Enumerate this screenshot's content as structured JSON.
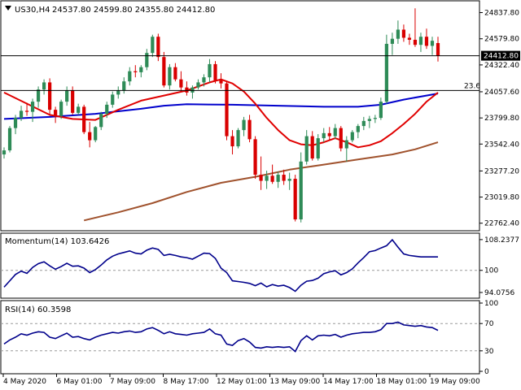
{
  "chart_data": {
    "type": "candlestick",
    "colors": {
      "bull": "#2e8b57",
      "bear": "#d90000",
      "ma_fast": "#e00000",
      "ma_mid": "#0000cc",
      "ma_slow": "#a0522d",
      "indicator_line": "#00008b",
      "price_label_bg": "#000000",
      "price_label_fg": "#ffffff",
      "grid": "#9a9a9a",
      "frame": "#000000"
    },
    "title": {
      "symbol": "US30,H4",
      "ohlc": "24537.80 24599.80 24355.80 24412.80"
    },
    "price_axis": {
      "ticks": [
        "24837.80",
        "24579.80",
        "24322.40",
        "24057.60",
        "23799.80",
        "23542.40",
        "23277.20",
        "23019.80",
        "22762.40"
      ],
      "ylim": [
        22720,
        24930
      ]
    },
    "current_price": {
      "value": 24412.8,
      "label": "24412.80"
    },
    "fib_level": {
      "value": 24070,
      "label": "23.6"
    },
    "x_axis_labels": [
      "4 May 2020",
      "6 May 01:00",
      "7 May 09:00",
      "8 May 17:00",
      "12 May 01:00",
      "13 May 09:00",
      "14 May 17:00",
      "18 May 01:00",
      "19 May 09:00"
    ],
    "candles": [
      {
        "o": 23440,
        "h": 23510,
        "l": 23400,
        "c": 23480
      },
      {
        "o": 23480,
        "h": 23720,
        "l": 23460,
        "c": 23700
      },
      {
        "o": 23700,
        "h": 23830,
        "l": 23640,
        "c": 23800
      },
      {
        "o": 23800,
        "h": 23920,
        "l": 23770,
        "c": 23870
      },
      {
        "o": 23870,
        "h": 23950,
        "l": 23820,
        "c": 23860
      },
      {
        "o": 23860,
        "h": 23990,
        "l": 23760,
        "c": 23960
      },
      {
        "o": 23960,
        "h": 24110,
        "l": 23900,
        "c": 24080
      },
      {
        "o": 24080,
        "h": 24180,
        "l": 24030,
        "c": 24150
      },
      {
        "o": 24150,
        "h": 24190,
        "l": 23820,
        "c": 23880
      },
      {
        "o": 23880,
        "h": 23910,
        "l": 23750,
        "c": 23820
      },
      {
        "o": 23820,
        "h": 23980,
        "l": 23790,
        "c": 23960
      },
      {
        "o": 23960,
        "h": 24110,
        "l": 23920,
        "c": 24070
      },
      {
        "o": 24070,
        "h": 24110,
        "l": 23830,
        "c": 23850
      },
      {
        "o": 23850,
        "h": 23940,
        "l": 23830,
        "c": 23910
      },
      {
        "o": 23910,
        "h": 23930,
        "l": 23640,
        "c": 23660
      },
      {
        "o": 23660,
        "h": 23760,
        "l": 23510,
        "c": 23580
      },
      {
        "o": 23580,
        "h": 23720,
        "l": 23560,
        "c": 23710
      },
      {
        "o": 23710,
        "h": 23860,
        "l": 23680,
        "c": 23840
      },
      {
        "o": 23840,
        "h": 23960,
        "l": 23800,
        "c": 23930
      },
      {
        "o": 23930,
        "h": 24060,
        "l": 23900,
        "c": 24030
      },
      {
        "o": 24030,
        "h": 24110,
        "l": 23990,
        "c": 24070
      },
      {
        "o": 24070,
        "h": 24200,
        "l": 24040,
        "c": 24160
      },
      {
        "o": 24160,
        "h": 24300,
        "l": 24120,
        "c": 24260
      },
      {
        "o": 24260,
        "h": 24320,
        "l": 24200,
        "c": 24250
      },
      {
        "o": 24250,
        "h": 24320,
        "l": 24200,
        "c": 24300
      },
      {
        "o": 24300,
        "h": 24480,
        "l": 24270,
        "c": 24440
      },
      {
        "o": 24440,
        "h": 24620,
        "l": 24400,
        "c": 24600
      },
      {
        "o": 24600,
        "h": 24630,
        "l": 24360,
        "c": 24400
      },
      {
        "o": 24400,
        "h": 24450,
        "l": 24100,
        "c": 24120
      },
      {
        "o": 24120,
        "h": 24330,
        "l": 24080,
        "c": 24300
      },
      {
        "o": 24300,
        "h": 24340,
        "l": 24160,
        "c": 24180
      },
      {
        "o": 24180,
        "h": 24260,
        "l": 24060,
        "c": 24100
      },
      {
        "o": 24100,
        "h": 24160,
        "l": 24020,
        "c": 24050
      },
      {
        "o": 24050,
        "h": 24120,
        "l": 23990,
        "c": 24100
      },
      {
        "o": 24100,
        "h": 24180,
        "l": 24080,
        "c": 24150
      },
      {
        "o": 24150,
        "h": 24230,
        "l": 24110,
        "c": 24200
      },
      {
        "o": 24200,
        "h": 24380,
        "l": 24150,
        "c": 24330
      },
      {
        "o": 24330,
        "h": 24360,
        "l": 24140,
        "c": 24170
      },
      {
        "o": 24170,
        "h": 24240,
        "l": 24090,
        "c": 24140
      },
      {
        "o": 24140,
        "h": 24160,
        "l": 23580,
        "c": 23620
      },
      {
        "o": 23620,
        "h": 23680,
        "l": 23440,
        "c": 23520
      },
      {
        "o": 23520,
        "h": 23700,
        "l": 23500,
        "c": 23680
      },
      {
        "o": 23680,
        "h": 23810,
        "l": 23620,
        "c": 23780
      },
      {
        "o": 23780,
        "h": 23830,
        "l": 23560,
        "c": 23590
      },
      {
        "o": 23590,
        "h": 23620,
        "l": 23200,
        "c": 23240
      },
      {
        "o": 23240,
        "h": 23420,
        "l": 23090,
        "c": 23180
      },
      {
        "o": 23180,
        "h": 23280,
        "l": 23100,
        "c": 23230
      },
      {
        "o": 23230,
        "h": 23340,
        "l": 23150,
        "c": 23170
      },
      {
        "o": 23170,
        "h": 23270,
        "l": 23110,
        "c": 23240
      },
      {
        "o": 23240,
        "h": 23290,
        "l": 23140,
        "c": 23180
      },
      {
        "o": 23180,
        "h": 23260,
        "l": 23090,
        "c": 23200
      },
      {
        "o": 23200,
        "h": 23240,
        "l": 22780,
        "c": 22800
      },
      {
        "o": 22800,
        "h": 23460,
        "l": 22770,
        "c": 23370
      },
      {
        "o": 23370,
        "h": 23680,
        "l": 23340,
        "c": 23620
      },
      {
        "o": 23620,
        "h": 23670,
        "l": 23380,
        "c": 23400
      },
      {
        "o": 23400,
        "h": 23640,
        "l": 23380,
        "c": 23600
      },
      {
        "o": 23600,
        "h": 23700,
        "l": 23560,
        "c": 23650
      },
      {
        "o": 23650,
        "h": 23710,
        "l": 23580,
        "c": 23620
      },
      {
        "o": 23620,
        "h": 23740,
        "l": 23590,
        "c": 23700
      },
      {
        "o": 23700,
        "h": 23720,
        "l": 23470,
        "c": 23500
      },
      {
        "o": 23500,
        "h": 23620,
        "l": 23370,
        "c": 23580
      },
      {
        "o": 23580,
        "h": 23680,
        "l": 23560,
        "c": 23660
      },
      {
        "o": 23660,
        "h": 23740,
        "l": 23600,
        "c": 23720
      },
      {
        "o": 23720,
        "h": 23810,
        "l": 23680,
        "c": 23770
      },
      {
        "o": 23770,
        "h": 23820,
        "l": 23700,
        "c": 23790
      },
      {
        "o": 23790,
        "h": 23830,
        "l": 23750,
        "c": 23800
      },
      {
        "o": 23800,
        "h": 24000,
        "l": 23780,
        "c": 23960
      },
      {
        "o": 23960,
        "h": 24620,
        "l": 23940,
        "c": 24530
      },
      {
        "o": 24530,
        "h": 24640,
        "l": 24420,
        "c": 24580
      },
      {
        "o": 24580,
        "h": 24760,
        "l": 24530,
        "c": 24670
      },
      {
        "o": 24670,
        "h": 24720,
        "l": 24550,
        "c": 24590
      },
      {
        "o": 24590,
        "h": 24630,
        "l": 24520,
        "c": 24570
      },
      {
        "o": 24570,
        "h": 24880,
        "l": 24500,
        "c": 24520
      },
      {
        "o": 24520,
        "h": 24640,
        "l": 24450,
        "c": 24600
      },
      {
        "o": 24600,
        "h": 24680,
        "l": 24480,
        "c": 24510
      },
      {
        "o": 24510,
        "h": 24600,
        "l": 24420,
        "c": 24560
      },
      {
        "o": 24537.8,
        "h": 24599.8,
        "l": 24355.8,
        "c": 24412.8
      }
    ],
    "ma_fast": [
      {
        "x": 0,
        "y": 24050
      },
      {
        "x": 4,
        "y": 23940
      },
      {
        "x": 8,
        "y": 23830
      },
      {
        "x": 12,
        "y": 23790
      },
      {
        "x": 16,
        "y": 23780
      },
      {
        "x": 20,
        "y": 23880
      },
      {
        "x": 24,
        "y": 23970
      },
      {
        "x": 28,
        "y": 24020
      },
      {
        "x": 32,
        "y": 24070
      },
      {
        "x": 36,
        "y": 24150
      },
      {
        "x": 38,
        "y": 24180
      },
      {
        "x": 40,
        "y": 24140
      },
      {
        "x": 42,
        "y": 24060
      },
      {
        "x": 44,
        "y": 23940
      },
      {
        "x": 46,
        "y": 23800
      },
      {
        "x": 48,
        "y": 23680
      },
      {
        "x": 50,
        "y": 23580
      },
      {
        "x": 52,
        "y": 23540
      },
      {
        "x": 54,
        "y": 23530
      },
      {
        "x": 56,
        "y": 23560
      },
      {
        "x": 58,
        "y": 23600
      },
      {
        "x": 60,
        "y": 23560
      },
      {
        "x": 62,
        "y": 23510
      },
      {
        "x": 64,
        "y": 23530
      },
      {
        "x": 66,
        "y": 23570
      },
      {
        "x": 68,
        "y": 23650
      },
      {
        "x": 70,
        "y": 23740
      },
      {
        "x": 72,
        "y": 23840
      },
      {
        "x": 74,
        "y": 23960
      },
      {
        "x": 76,
        "y": 24050
      }
    ],
    "ma_mid": [
      {
        "x": 0,
        "y": 23790
      },
      {
        "x": 8,
        "y": 23810
      },
      {
        "x": 16,
        "y": 23840
      },
      {
        "x": 24,
        "y": 23890
      },
      {
        "x": 28,
        "y": 23920
      },
      {
        "x": 32,
        "y": 23935
      },
      {
        "x": 40,
        "y": 23930
      },
      {
        "x": 48,
        "y": 23920
      },
      {
        "x": 56,
        "y": 23910
      },
      {
        "x": 62,
        "y": 23910
      },
      {
        "x": 66,
        "y": 23930
      },
      {
        "x": 70,
        "y": 23980
      },
      {
        "x": 76,
        "y": 24040
      }
    ],
    "ma_slow": [
      {
        "x": 14,
        "y": 22790
      },
      {
        "x": 20,
        "y": 22870
      },
      {
        "x": 26,
        "y": 22960
      },
      {
        "x": 32,
        "y": 23070
      },
      {
        "x": 38,
        "y": 23160
      },
      {
        "x": 44,
        "y": 23220
      },
      {
        "x": 50,
        "y": 23290
      },
      {
        "x": 56,
        "y": 23340
      },
      {
        "x": 62,
        "y": 23390
      },
      {
        "x": 68,
        "y": 23440
      },
      {
        "x": 72,
        "y": 23490
      },
      {
        "x": 76,
        "y": 23560
      }
    ],
    "momentum": {
      "label": "Momentum(14) 103.6426",
      "ticks": [
        "108.2377",
        "100",
        "94.0756"
      ],
      "ylim": [
        93.2,
        109.3
      ],
      "ref_level": 100,
      "values": [
        95.5,
        97.2,
        98.9,
        99.8,
        99.2,
        100.8,
        101.8,
        102.3,
        101.2,
        100.3,
        101.0,
        101.9,
        101.1,
        101.2,
        100.6,
        99.4,
        100.2,
        101.4,
        102.8,
        103.8,
        104.4,
        104.8,
        105.2,
        104.6,
        104.4,
        105.4,
        106.0,
        105.6,
        104.0,
        104.3,
        104.0,
        103.6,
        103.4,
        103.0,
        103.8,
        104.6,
        104.5,
        103.2,
        100.6,
        99.4,
        97.2,
        97.0,
        96.8,
        96.5,
        95.9,
        96.6,
        95.6,
        96.2,
        95.8,
        96.0,
        95.4,
        94.4,
        96.0,
        97.1,
        97.3,
        97.9,
        99.1,
        99.6,
        99.9,
        98.8,
        99.4,
        100.4,
        102.0,
        103.4,
        105.0,
        105.3,
        106.0,
        106.6,
        108.2,
        106.2,
        104.4,
        104.0,
        103.8,
        103.6,
        103.6,
        103.6,
        103.6
      ]
    },
    "rsi": {
      "label": "RSI(14) 60.3598",
      "ticks": [
        "100",
        "70",
        "30",
        "0"
      ],
      "ylim": [
        0,
        100
      ],
      "levels": [
        70,
        30
      ],
      "values": [
        40,
        46,
        50,
        55,
        53,
        56,
        58,
        57,
        50,
        48,
        52,
        56,
        50,
        51,
        48,
        46,
        50,
        53,
        55,
        57,
        56,
        58,
        59,
        57,
        58,
        62,
        64,
        60,
        55,
        58,
        55,
        54,
        53,
        55,
        56,
        57,
        62,
        55,
        53,
        40,
        38,
        45,
        48,
        43,
        35,
        34,
        36,
        35,
        36,
        35,
        36,
        29,
        45,
        52,
        46,
        52,
        53,
        52,
        54,
        50,
        53,
        55,
        56,
        57,
        57,
        58,
        61,
        70,
        70,
        72,
        68,
        67,
        66,
        67,
        65,
        64,
        60
      ]
    }
  }
}
